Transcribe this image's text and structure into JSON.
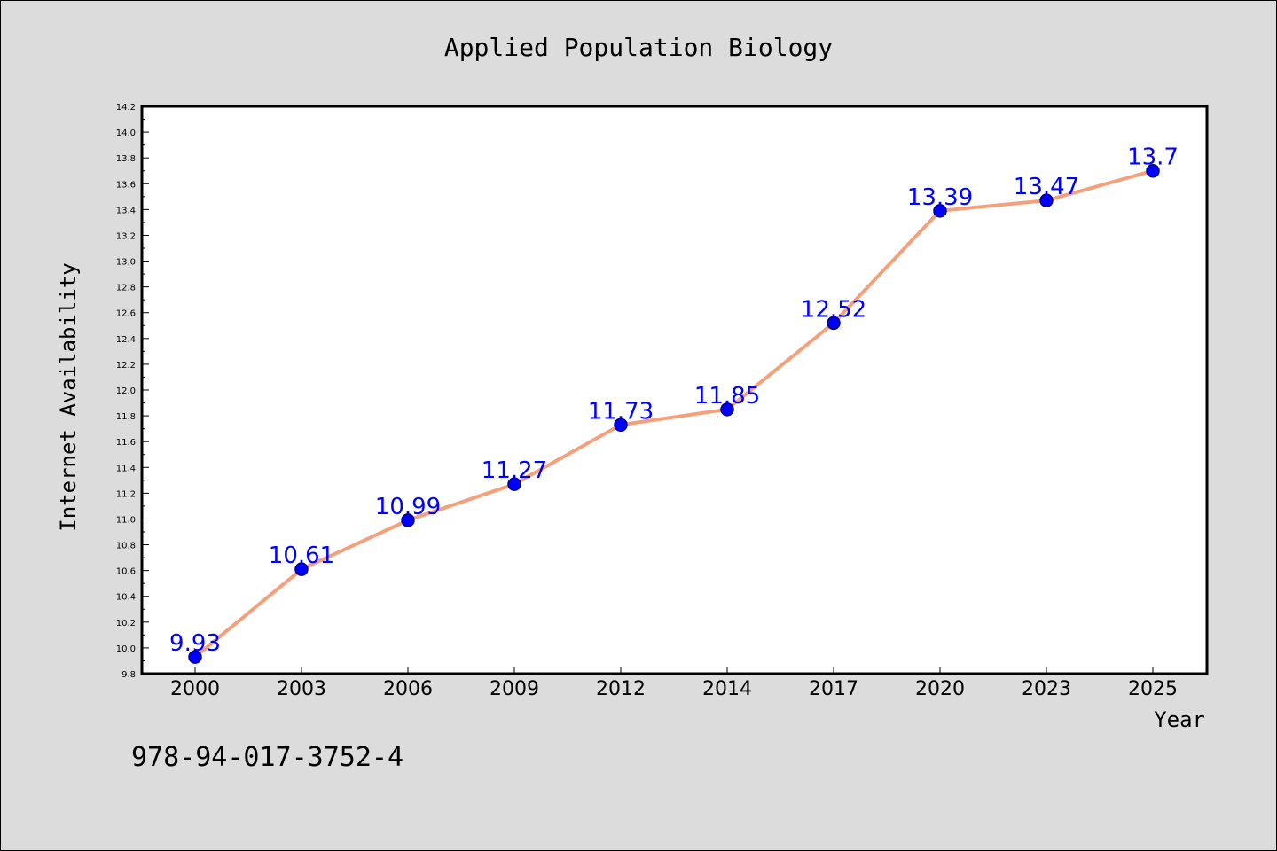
{
  "chart_data": {
    "type": "line",
    "title": "Applied Population Biology",
    "xlabel": "Year",
    "ylabel": "Internet Availability",
    "categories": [
      "2000",
      "2003",
      "2006",
      "2009",
      "2012",
      "2014",
      "2017",
      "2020",
      "2023",
      "2025"
    ],
    "series": [
      {
        "values": [
          9.93,
          10.61,
          10.99,
          11.27,
          11.73,
          11.85,
          12.52,
          13.39,
          13.47,
          13.7
        ],
        "labels": [
          "9.93",
          "10.61",
          "10.99",
          "11.27",
          "11.73",
          "11.85",
          "12.52",
          "13.39",
          "13.47",
          "13.7"
        ]
      }
    ],
    "ylim": [
      9.8,
      14.2
    ],
    "yticks": [
      "9.8",
      "10.0",
      "10.2",
      "10.4",
      "10.6",
      "10.8",
      "11.0",
      "11.2",
      "11.4",
      "11.6",
      "11.8",
      "12.0",
      "12.2",
      "12.4",
      "12.6",
      "12.8",
      "13.0",
      "13.2",
      "13.4",
      "13.6",
      "13.8",
      "14.0",
      "14.2"
    ],
    "grid": false,
    "legend": "none",
    "colors": {
      "line": "#f4a07a",
      "marker": "#0000ff",
      "marker_edge": "#000080",
      "data_label": "#0000ff"
    }
  },
  "footer": {
    "isbn": "978-94-017-3752-4"
  }
}
